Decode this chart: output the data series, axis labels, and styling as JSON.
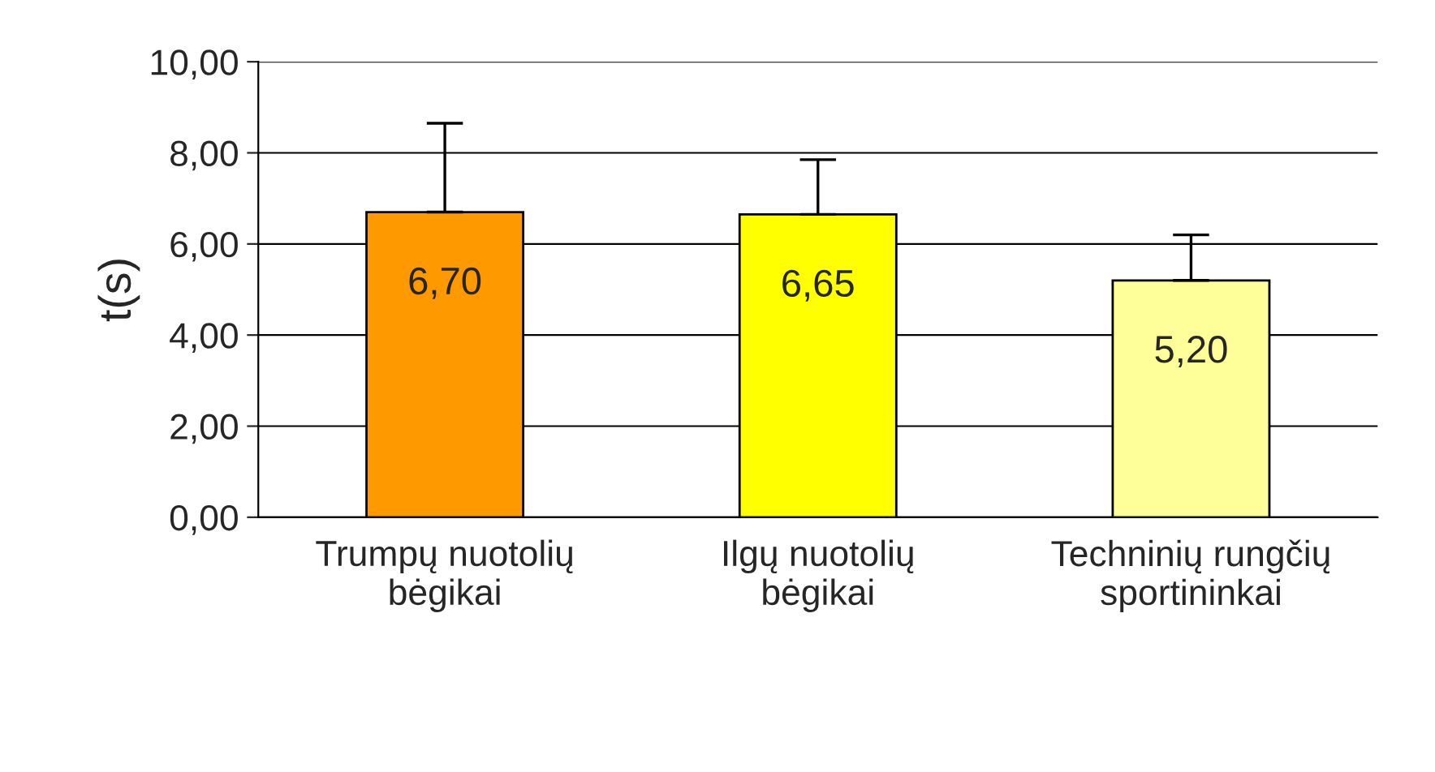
{
  "chart_data": {
    "type": "bar",
    "ylabel": "t(s)",
    "categories": [
      "Trumpų nuotolių\nbėgikai",
      "Ilgų nuotolių\nbėgikai",
      "Techninių rungčių\nsportininkai"
    ],
    "values": [
      6.7,
      6.65,
      5.2
    ],
    "value_labels": [
      "6,70",
      "6,65",
      "5,20"
    ],
    "colors": [
      "#ff9900",
      "#ffff00",
      "#ffff99"
    ],
    "errors": [
      [
        6.7,
        8.65
      ],
      [
        6.65,
        7.85
      ],
      [
        5.2,
        6.2
      ]
    ],
    "ylim": [
      0,
      10
    ],
    "yticks": [
      {
        "value": 0,
        "label": "0,00"
      },
      {
        "value": 2,
        "label": "2,00"
      },
      {
        "value": 4,
        "label": "4,00"
      },
      {
        "value": 6,
        "label": "6,00"
      },
      {
        "value": 8,
        "label": "8,00"
      },
      {
        "value": 10,
        "label": "10,00"
      }
    ],
    "grid": "y"
  }
}
